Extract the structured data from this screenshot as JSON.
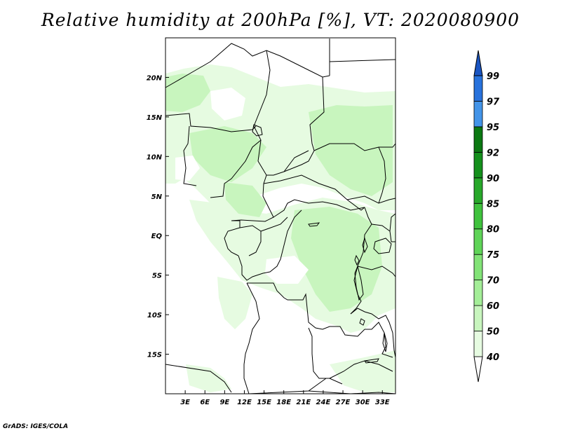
{
  "title": "Relative humidity at 200hPa [%], VT: 2020080900",
  "credit": "GrADS: IGES/COLA",
  "map": {
    "lon_range": [
      0,
      35
    ],
    "lat_range": [
      -20,
      25
    ],
    "lon_ticks": [
      {
        "lon": 3,
        "label": "3E"
      },
      {
        "lon": 6,
        "label": "6E"
      },
      {
        "lon": 9,
        "label": "9E"
      },
      {
        "lon": 12,
        "label": "12E"
      },
      {
        "lon": 15,
        "label": "15E"
      },
      {
        "lon": 18,
        "label": "18E"
      },
      {
        "lon": 21,
        "label": "21E"
      },
      {
        "lon": 24,
        "label": "24E"
      },
      {
        "lon": 27,
        "label": "27E"
      },
      {
        "lon": 30,
        "label": "30E"
      },
      {
        "lon": 33,
        "label": "33E"
      }
    ],
    "lat_ticks": [
      {
        "lat": 20,
        "label": "20N"
      },
      {
        "lat": 15,
        "label": "15N"
      },
      {
        "lat": 10,
        "label": "10N"
      },
      {
        "lat": 5,
        "label": "5N"
      },
      {
        "lat": 0,
        "label": "EQ"
      },
      {
        "lat": -5,
        "label": "5S"
      },
      {
        "lat": -10,
        "label": "10S"
      },
      {
        "lat": -15,
        "label": "15S"
      }
    ]
  },
  "colorbar": {
    "levels": [
      "40",
      "50",
      "60",
      "70",
      "75",
      "80",
      "85",
      "90",
      "92",
      "95",
      "97",
      "99"
    ],
    "colors": [
      "#ffffff",
      "#e6fbe1",
      "#c8f5be",
      "#a4ee98",
      "#82e377",
      "#5fd458",
      "#3fc23d",
      "#27a82a",
      "#14901c",
      "#0b7812",
      "#4394e8",
      "#2872dc",
      "#1a55c2"
    ]
  }
}
